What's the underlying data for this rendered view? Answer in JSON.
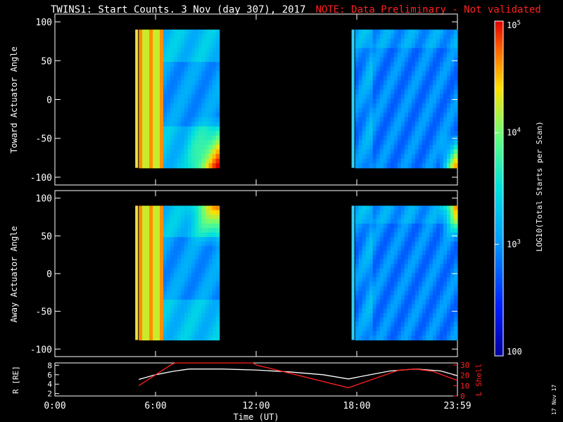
{
  "title": {
    "main": "TWINS1: Start Counts.  3 Nov (day 307), 2017",
    "note": "NOTE: Data Preliminary - Not validated"
  },
  "stamp": "17 Nov 17",
  "colorbar": {
    "label": "LOG10(Total Starts per Scan)",
    "ticks": [
      "100",
      "10^3",
      "10^4",
      "10^5"
    ],
    "scale": "log",
    "range": [
      100,
      100000
    ]
  },
  "chart_data": [
    {
      "type": "heatmap",
      "ylabel": "Toward Actuator Angle",
      "ylim": [
        -110,
        110
      ],
      "yticks": [
        100,
        50,
        0,
        -50,
        -100
      ],
      "x_range_hours": [
        0,
        24
      ],
      "data_blocks_hours": [
        [
          5.0,
          9.8
        ],
        [
          17.9,
          24.0
        ]
      ],
      "angle_range": [
        -88,
        90
      ]
    },
    {
      "type": "heatmap",
      "ylabel": "Away Actuator Angle",
      "ylim": [
        -110,
        110
      ],
      "yticks": [
        100,
        50,
        0,
        -50,
        -100
      ],
      "x_range_hours": [
        0,
        24
      ],
      "data_blocks_hours": [
        [
          5.0,
          9.8
        ],
        [
          17.9,
          24.0
        ]
      ],
      "angle_range": [
        -88,
        90
      ]
    },
    {
      "type": "line",
      "xlabel": "Time (UT)",
      "xticks": [
        "0:00",
        "6:00",
        "12:00",
        "18:00",
        "23:59"
      ],
      "xtick_hours": [
        0,
        6,
        12,
        18,
        24
      ],
      "ylabel": "R [RE]",
      "yticks": [
        2,
        4,
        6,
        8
      ],
      "ylim": [
        1.5,
        8.5
      ],
      "y2label": "L Shell",
      "y2ticks": [
        0,
        10,
        20,
        30
      ],
      "y2lim": [
        0,
        32
      ],
      "series": [
        {
          "name": "R [RE]",
          "color": "#ffffff",
          "x": [
            5.0,
            6.0,
            7.0,
            8.0,
            10.0,
            12.0,
            14.0,
            16.0,
            17.5,
            18.5,
            20.0,
            21.5,
            23.0,
            24.0
          ],
          "y": [
            5.0,
            6.0,
            6.7,
            7.2,
            7.2,
            7.0,
            6.6,
            6.0,
            5.1,
            5.8,
            6.8,
            7.2,
            6.8,
            5.8
          ]
        },
        {
          "name": "L Shell",
          "color": "#ff2020",
          "x": [
            5.0,
            7.0,
            7.2,
            11.8,
            12.0,
            17.5,
            20.5,
            21.5,
            22.5,
            24.0
          ],
          "y": [
            10,
            31,
            32,
            32,
            30,
            8,
            25,
            26,
            24,
            15
          ]
        }
      ]
    }
  ]
}
